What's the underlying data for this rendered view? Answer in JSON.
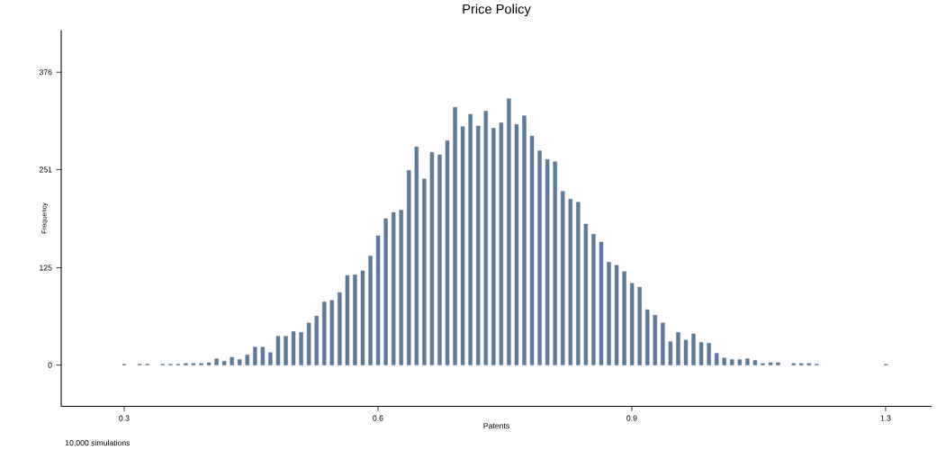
{
  "chart_data": {
    "type": "histogram",
    "title": "Price Policy",
    "xlabel": "Patents",
    "ylabel": "Frequency",
    "annotations": [
      "10,000 simulations"
    ],
    "color": "#5d7b9a",
    "bins": [
      0.2952,
      0.3049,
      0.3146,
      0.3243,
      0.334,
      0.3437,
      0.3534,
      0.3631,
      0.3728,
      0.3825,
      0.3922,
      0.4019,
      0.4116,
      0.4213,
      0.431,
      0.4407,
      0.4504,
      0.4601,
      0.4698,
      0.4795,
      0.4892,
      0.4989,
      0.5086,
      0.5183,
      0.528,
      0.5377,
      0.5474,
      0.5571,
      0.5668,
      0.5765,
      0.5862,
      0.5959,
      0.6056,
      0.6153,
      0.625,
      0.6347,
      0.6444,
      0.6541,
      0.6638,
      0.6735,
      0.6832,
      0.6929,
      0.7026,
      0.7123,
      0.722,
      0.7317,
      0.7414,
      0.7511,
      0.7608,
      0.7705,
      0.7802,
      0.7899,
      0.7996,
      0.8093,
      0.819,
      0.8287,
      0.8384,
      0.8481,
      0.8578,
      0.8675,
      0.8772,
      0.8869,
      0.8966,
      0.9063,
      0.916,
      0.9257,
      0.9354,
      0.9451,
      0.9548,
      0.9645,
      0.9742,
      0.9839,
      0.9936,
      1.0033,
      1.013,
      1.0227,
      1.0324,
      1.0421,
      1.0518,
      1.0615,
      1.0712,
      1.0809,
      1.0906,
      1.1003,
      1.11,
      1.1197,
      1.1294,
      1.1391,
      1.1488,
      1.1585,
      1.1682,
      1.1779,
      1.1876,
      1.1973,
      1.207,
      1.2167,
      1.2264,
      1.2361,
      1.2458,
      1.2555,
      1.2652
    ],
    "values": [
      1,
      0,
      1,
      1,
      0,
      1,
      1,
      1,
      2,
      2,
      2,
      3,
      8,
      5,
      10,
      7,
      13,
      23,
      23,
      16,
      37,
      37,
      43,
      42,
      54,
      63,
      81,
      83,
      93,
      115,
      116,
      121,
      140,
      166,
      188,
      196,
      199,
      250,
      280,
      239,
      273,
      270,
      288,
      331,
      306,
      322,
      307,
      326,
      304,
      311,
      342,
      309,
      320,
      294,
      275,
      264,
      261,
      223,
      213,
      209,
      181,
      168,
      158,
      132,
      128,
      120,
      105,
      100,
      71,
      64,
      54,
      30,
      42,
      32,
      40,
      29,
      28,
      15,
      9,
      7,
      7,
      8,
      6,
      2,
      3,
      3,
      0,
      2,
      2,
      2,
      1,
      0,
      0,
      0,
      0,
      0,
      0,
      0,
      0,
      1
    ],
    "xlim": [
      0.2206,
      1.318
    ],
    "ylim": [
      -53,
      430
    ],
    "xticks": [
      0.3,
      {
        "value": 0.62,
        "label": "0.6"
      },
      {
        "value": 0.94,
        "label": "0.9"
      },
      {
        "value": 1.26,
        "label": "1.3"
      }
    ],
    "yticks": [
      0,
      125,
      251,
      376
    ]
  }
}
